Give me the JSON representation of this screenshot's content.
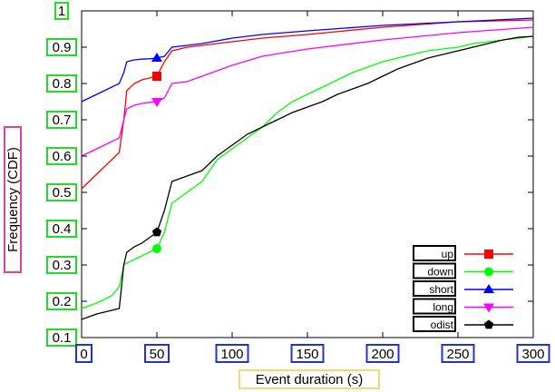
{
  "chart_data": {
    "type": "line",
    "title": "",
    "xlabel": "Event duration (s)",
    "ylabel": "Frequency (CDF)",
    "xlim": [
      0,
      300
    ],
    "ylim": [
      0.1,
      1
    ],
    "xticks": [
      "0",
      "50",
      "100",
      "150",
      "200",
      "250",
      "300"
    ],
    "yticks": [
      "0.1",
      "0.2",
      "0.3",
      "0.4",
      "0.5",
      "0.6",
      "0.7",
      "0.8",
      "0.9",
      "1"
    ],
    "grid": false,
    "legend_position": "bottom-right",
    "series": [
      {
        "name": "up",
        "color": "#ff0000",
        "marker": "square",
        "marker_at": [
          50,
          0.82
        ],
        "x": [
          0,
          10,
          20,
          25,
          28,
          30,
          35,
          40,
          45,
          50,
          55,
          60,
          70,
          80,
          100,
          120,
          150,
          200,
          250,
          300
        ],
        "y": [
          0.51,
          0.55,
          0.59,
          0.61,
          0.7,
          0.78,
          0.8,
          0.81,
          0.815,
          0.82,
          0.86,
          0.89,
          0.9,
          0.905,
          0.915,
          0.925,
          0.935,
          0.955,
          0.97,
          0.975
        ]
      },
      {
        "name": "down",
        "color": "#00ff00",
        "marker": "circle",
        "marker_at": [
          50,
          0.345
        ],
        "x": [
          0,
          10,
          20,
          25,
          28,
          30,
          35,
          40,
          45,
          50,
          55,
          60,
          70,
          80,
          90,
          100,
          110,
          120,
          130,
          140,
          150,
          160,
          170,
          180,
          190,
          200,
          210,
          220,
          230,
          240,
          250,
          260,
          270,
          280,
          290,
          300
        ],
        "y": [
          0.18,
          0.195,
          0.215,
          0.24,
          0.3,
          0.305,
          0.315,
          0.325,
          0.335,
          0.345,
          0.39,
          0.47,
          0.5,
          0.53,
          0.59,
          0.62,
          0.65,
          0.68,
          0.72,
          0.75,
          0.77,
          0.79,
          0.81,
          0.83,
          0.845,
          0.86,
          0.87,
          0.88,
          0.89,
          0.895,
          0.9,
          0.91,
          0.915,
          0.92,
          0.925,
          0.93
        ]
      },
      {
        "name": "short",
        "color": "#0000ff",
        "marker": "triangle-up",
        "marker_at": [
          50,
          0.87
        ],
        "x": [
          0,
          10,
          20,
          25,
          28,
          30,
          35,
          40,
          45,
          50,
          55,
          60,
          70,
          80,
          100,
          120,
          150,
          200,
          250,
          300
        ],
        "y": [
          0.75,
          0.77,
          0.79,
          0.8,
          0.83,
          0.86,
          0.865,
          0.867,
          0.868,
          0.87,
          0.875,
          0.9,
          0.905,
          0.91,
          0.925,
          0.935,
          0.945,
          0.96,
          0.97,
          0.98
        ]
      },
      {
        "name": "long",
        "color": "#ff00ff",
        "marker": "triangle-down",
        "marker_at": [
          50,
          0.75
        ],
        "x": [
          0,
          10,
          20,
          25,
          28,
          30,
          35,
          40,
          45,
          50,
          55,
          60,
          70,
          80,
          90,
          100,
          120,
          150,
          200,
          250,
          300
        ],
        "y": [
          0.6,
          0.62,
          0.64,
          0.65,
          0.7,
          0.73,
          0.74,
          0.745,
          0.748,
          0.75,
          0.76,
          0.8,
          0.805,
          0.82,
          0.835,
          0.85,
          0.875,
          0.895,
          0.92,
          0.94,
          0.955
        ]
      },
      {
        "name": "odist",
        "color": "#000000",
        "marker": "pentagon",
        "marker_at": [
          50,
          0.39
        ],
        "x": [
          0,
          10,
          20,
          25,
          28,
          30,
          35,
          40,
          45,
          50,
          55,
          60,
          70,
          80,
          90,
          100,
          110,
          120,
          130,
          140,
          150,
          160,
          170,
          180,
          190,
          200,
          210,
          220,
          230,
          240,
          250,
          260,
          270,
          280,
          290,
          300
        ],
        "y": [
          0.15,
          0.165,
          0.175,
          0.18,
          0.3,
          0.335,
          0.35,
          0.36,
          0.375,
          0.39,
          0.45,
          0.53,
          0.545,
          0.56,
          0.6,
          0.63,
          0.66,
          0.68,
          0.7,
          0.72,
          0.735,
          0.75,
          0.77,
          0.785,
          0.8,
          0.82,
          0.84,
          0.855,
          0.87,
          0.88,
          0.89,
          0.9,
          0.91,
          0.92,
          0.927,
          0.93
        ]
      }
    ]
  }
}
